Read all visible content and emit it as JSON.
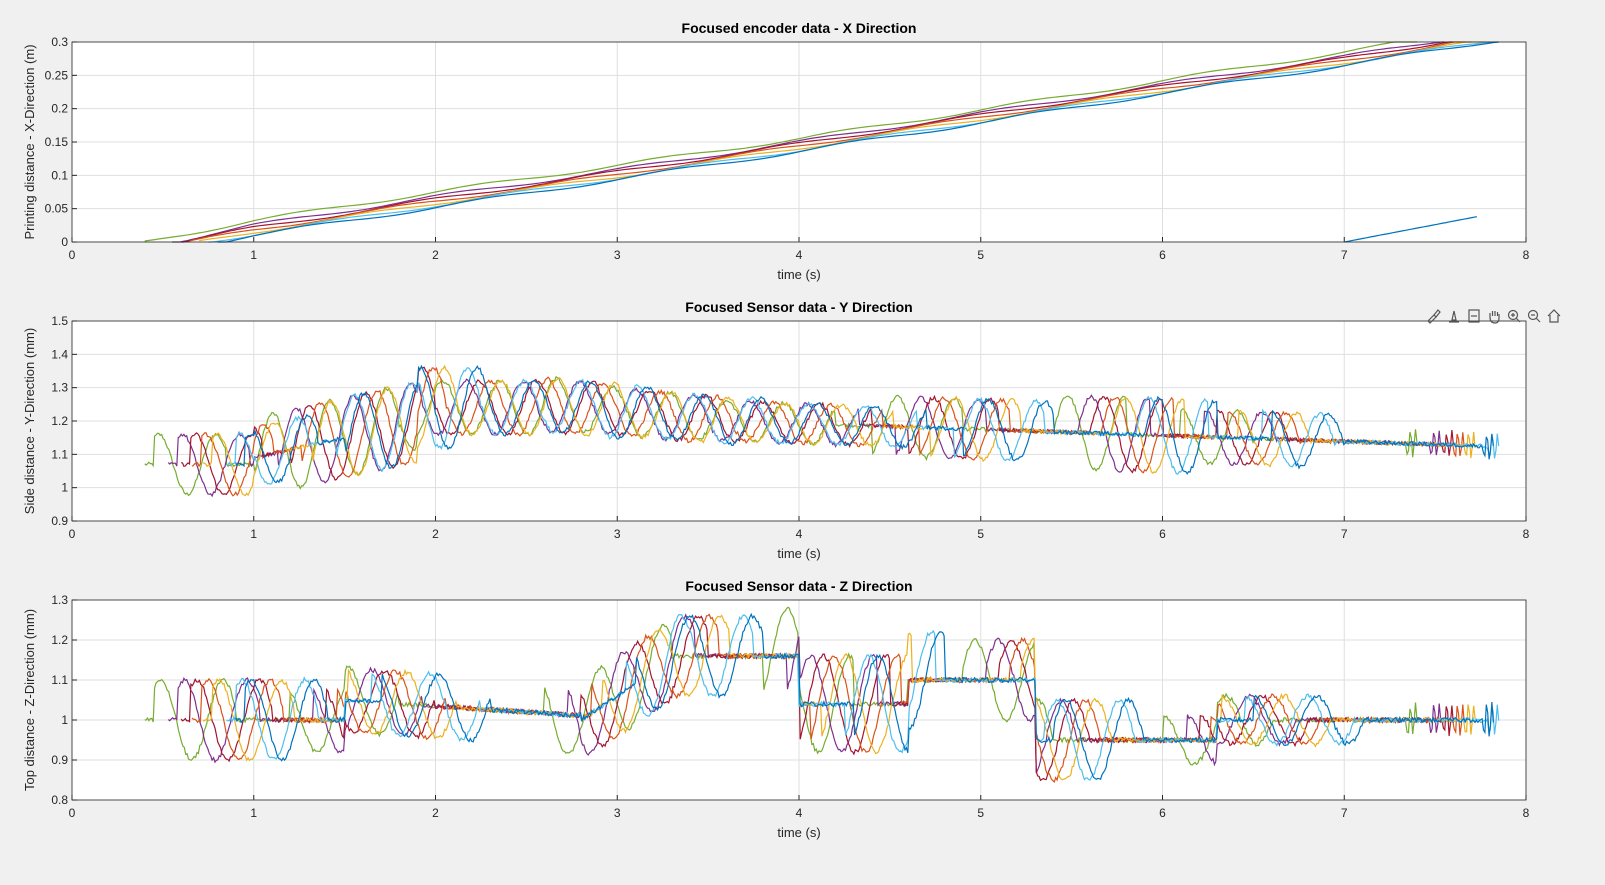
{
  "figure": {
    "background": "#f0f0f0",
    "toolbar_icons": [
      "brush-icon",
      "data-tips-icon",
      "link-axes-icon",
      "pan-hand-icon",
      "zoom-in-icon",
      "zoom-out-icon",
      "home-icon"
    ]
  },
  "chart_data": [
    {
      "type": "line",
      "title": "Focused encoder data - X Direction",
      "xlabel": "time (s)",
      "ylabel": "Printing distance - X-Direction (m)",
      "xlim": [
        0,
        8
      ],
      "ylim": [
        0,
        0.3
      ],
      "xticks": [
        "0",
        "1",
        "2",
        "3",
        "4",
        "5",
        "6",
        "7",
        "8"
      ],
      "yticks": [
        "0",
        "0.05",
        "0.1",
        "0.15",
        "0.2",
        "0.25",
        "0.3"
      ],
      "grid": true,
      "series": [
        {
          "color": "#77ac30",
          "x": [
            0.4,
            1.0,
            2.0,
            3.0,
            4.0,
            5.0,
            6.0,
            7.0,
            7.4
          ],
          "y": [
            0.0,
            0.032,
            0.075,
            0.115,
            0.155,
            0.198,
            0.242,
            0.285,
            0.303
          ]
        },
        {
          "color": "#7e2f8e",
          "x": [
            0.55,
            1.0,
            2.0,
            3.0,
            4.0,
            5.0,
            6.0,
            7.0,
            7.55
          ],
          "y": [
            0.0,
            0.025,
            0.068,
            0.108,
            0.15,
            0.193,
            0.236,
            0.278,
            0.303
          ]
        },
        {
          "color": "#a2142f",
          "x": [
            0.6,
            1.0,
            2.0,
            3.0,
            4.0,
            5.0,
            6.0,
            7.0,
            7.6
          ],
          "y": [
            0.0,
            0.021,
            0.064,
            0.105,
            0.147,
            0.19,
            0.233,
            0.275,
            0.303
          ]
        },
        {
          "color": "#d95319",
          "x": [
            0.65,
            1.0,
            2.0,
            3.0,
            4.0,
            5.0,
            6.0,
            7.0,
            7.7
          ],
          "y": [
            0.0,
            0.018,
            0.061,
            0.101,
            0.144,
            0.187,
            0.23,
            0.272,
            0.303
          ]
        },
        {
          "color": "#edb120",
          "x": [
            0.7,
            1.0,
            2.0,
            3.0,
            4.0,
            5.0,
            6.0,
            7.0,
            7.8
          ],
          "y": [
            0.0,
            0.015,
            0.058,
            0.098,
            0.141,
            0.184,
            0.227,
            0.269,
            0.303
          ]
        },
        {
          "color": "#4dbeee",
          "x": [
            0.75,
            1.0,
            2.0,
            3.0,
            4.0,
            5.0,
            6.0,
            7.0,
            7.85
          ],
          "y": [
            0.0,
            0.012,
            0.055,
            0.096,
            0.138,
            0.181,
            0.225,
            0.267,
            0.303
          ]
        },
        {
          "color": "#0072bd",
          "x": [
            0.8,
            1.0,
            2.0,
            3.0,
            4.0,
            5.0,
            6.0,
            7.0,
            7.85
          ],
          "y": [
            0.0,
            0.01,
            0.052,
            0.094,
            0.136,
            0.179,
            0.223,
            0.265,
            0.303
          ]
        },
        {
          "color": "#0072bd",
          "x": [
            7.0,
            7.73
          ],
          "y": [
            0.0,
            0.038
          ]
        }
      ]
    },
    {
      "type": "line",
      "title": "Focused Sensor data - Y Direction",
      "xlabel": "time (s)",
      "ylabel": "Side distance - Y-Direction (mm)",
      "xlim": [
        0,
        8
      ],
      "ylim": [
        0.9,
        1.5
      ],
      "xticks": [
        "0",
        "1",
        "2",
        "3",
        "4",
        "5",
        "6",
        "7",
        "8"
      ],
      "yticks": [
        "0.9",
        "1",
        "1.1",
        "1.2",
        "1.3",
        "1.4",
        "1.5"
      ],
      "grid": true,
      "series": [
        {
          "color": "#77ac30",
          "start": 0.4,
          "end": 7.4
        },
        {
          "color": "#7e2f8e",
          "start": 0.53,
          "end": 7.53
        },
        {
          "color": "#a2142f",
          "start": 0.6,
          "end": 7.6
        },
        {
          "color": "#d95319",
          "start": 0.66,
          "end": 7.66
        },
        {
          "color": "#edb120",
          "start": 0.72,
          "end": 7.72
        },
        {
          "color": "#4dbeee",
          "start": 0.85,
          "end": 7.85
        },
        {
          "color": "#0072bd",
          "start": 0.9,
          "end": 7.82
        }
      ]
    },
    {
      "type": "line",
      "title": "Focused Sensor data - Z Direction",
      "xlabel": "time (s)",
      "ylabel": "Top distance - Z-Direction (mm)",
      "xlim": [
        0,
        8
      ],
      "ylim": [
        0.8,
        1.3
      ],
      "xticks": [
        "0",
        "1",
        "2",
        "3",
        "4",
        "5",
        "6",
        "7",
        "8"
      ],
      "yticks": [
        "0.8",
        "0.9",
        "1",
        "1.1",
        "1.2",
        "1.3"
      ],
      "grid": true,
      "series": [
        {
          "color": "#77ac30",
          "start": 0.4,
          "end": 7.4
        },
        {
          "color": "#7e2f8e",
          "start": 0.53,
          "end": 7.53
        },
        {
          "color": "#a2142f",
          "start": 0.6,
          "end": 7.6
        },
        {
          "color": "#d95319",
          "start": 0.66,
          "end": 7.66
        },
        {
          "color": "#edb120",
          "start": 0.72,
          "end": 7.72
        },
        {
          "color": "#4dbeee",
          "start": 0.85,
          "end": 7.85
        },
        {
          "color": "#0072bd",
          "start": 0.9,
          "end": 7.82
        }
      ]
    }
  ]
}
